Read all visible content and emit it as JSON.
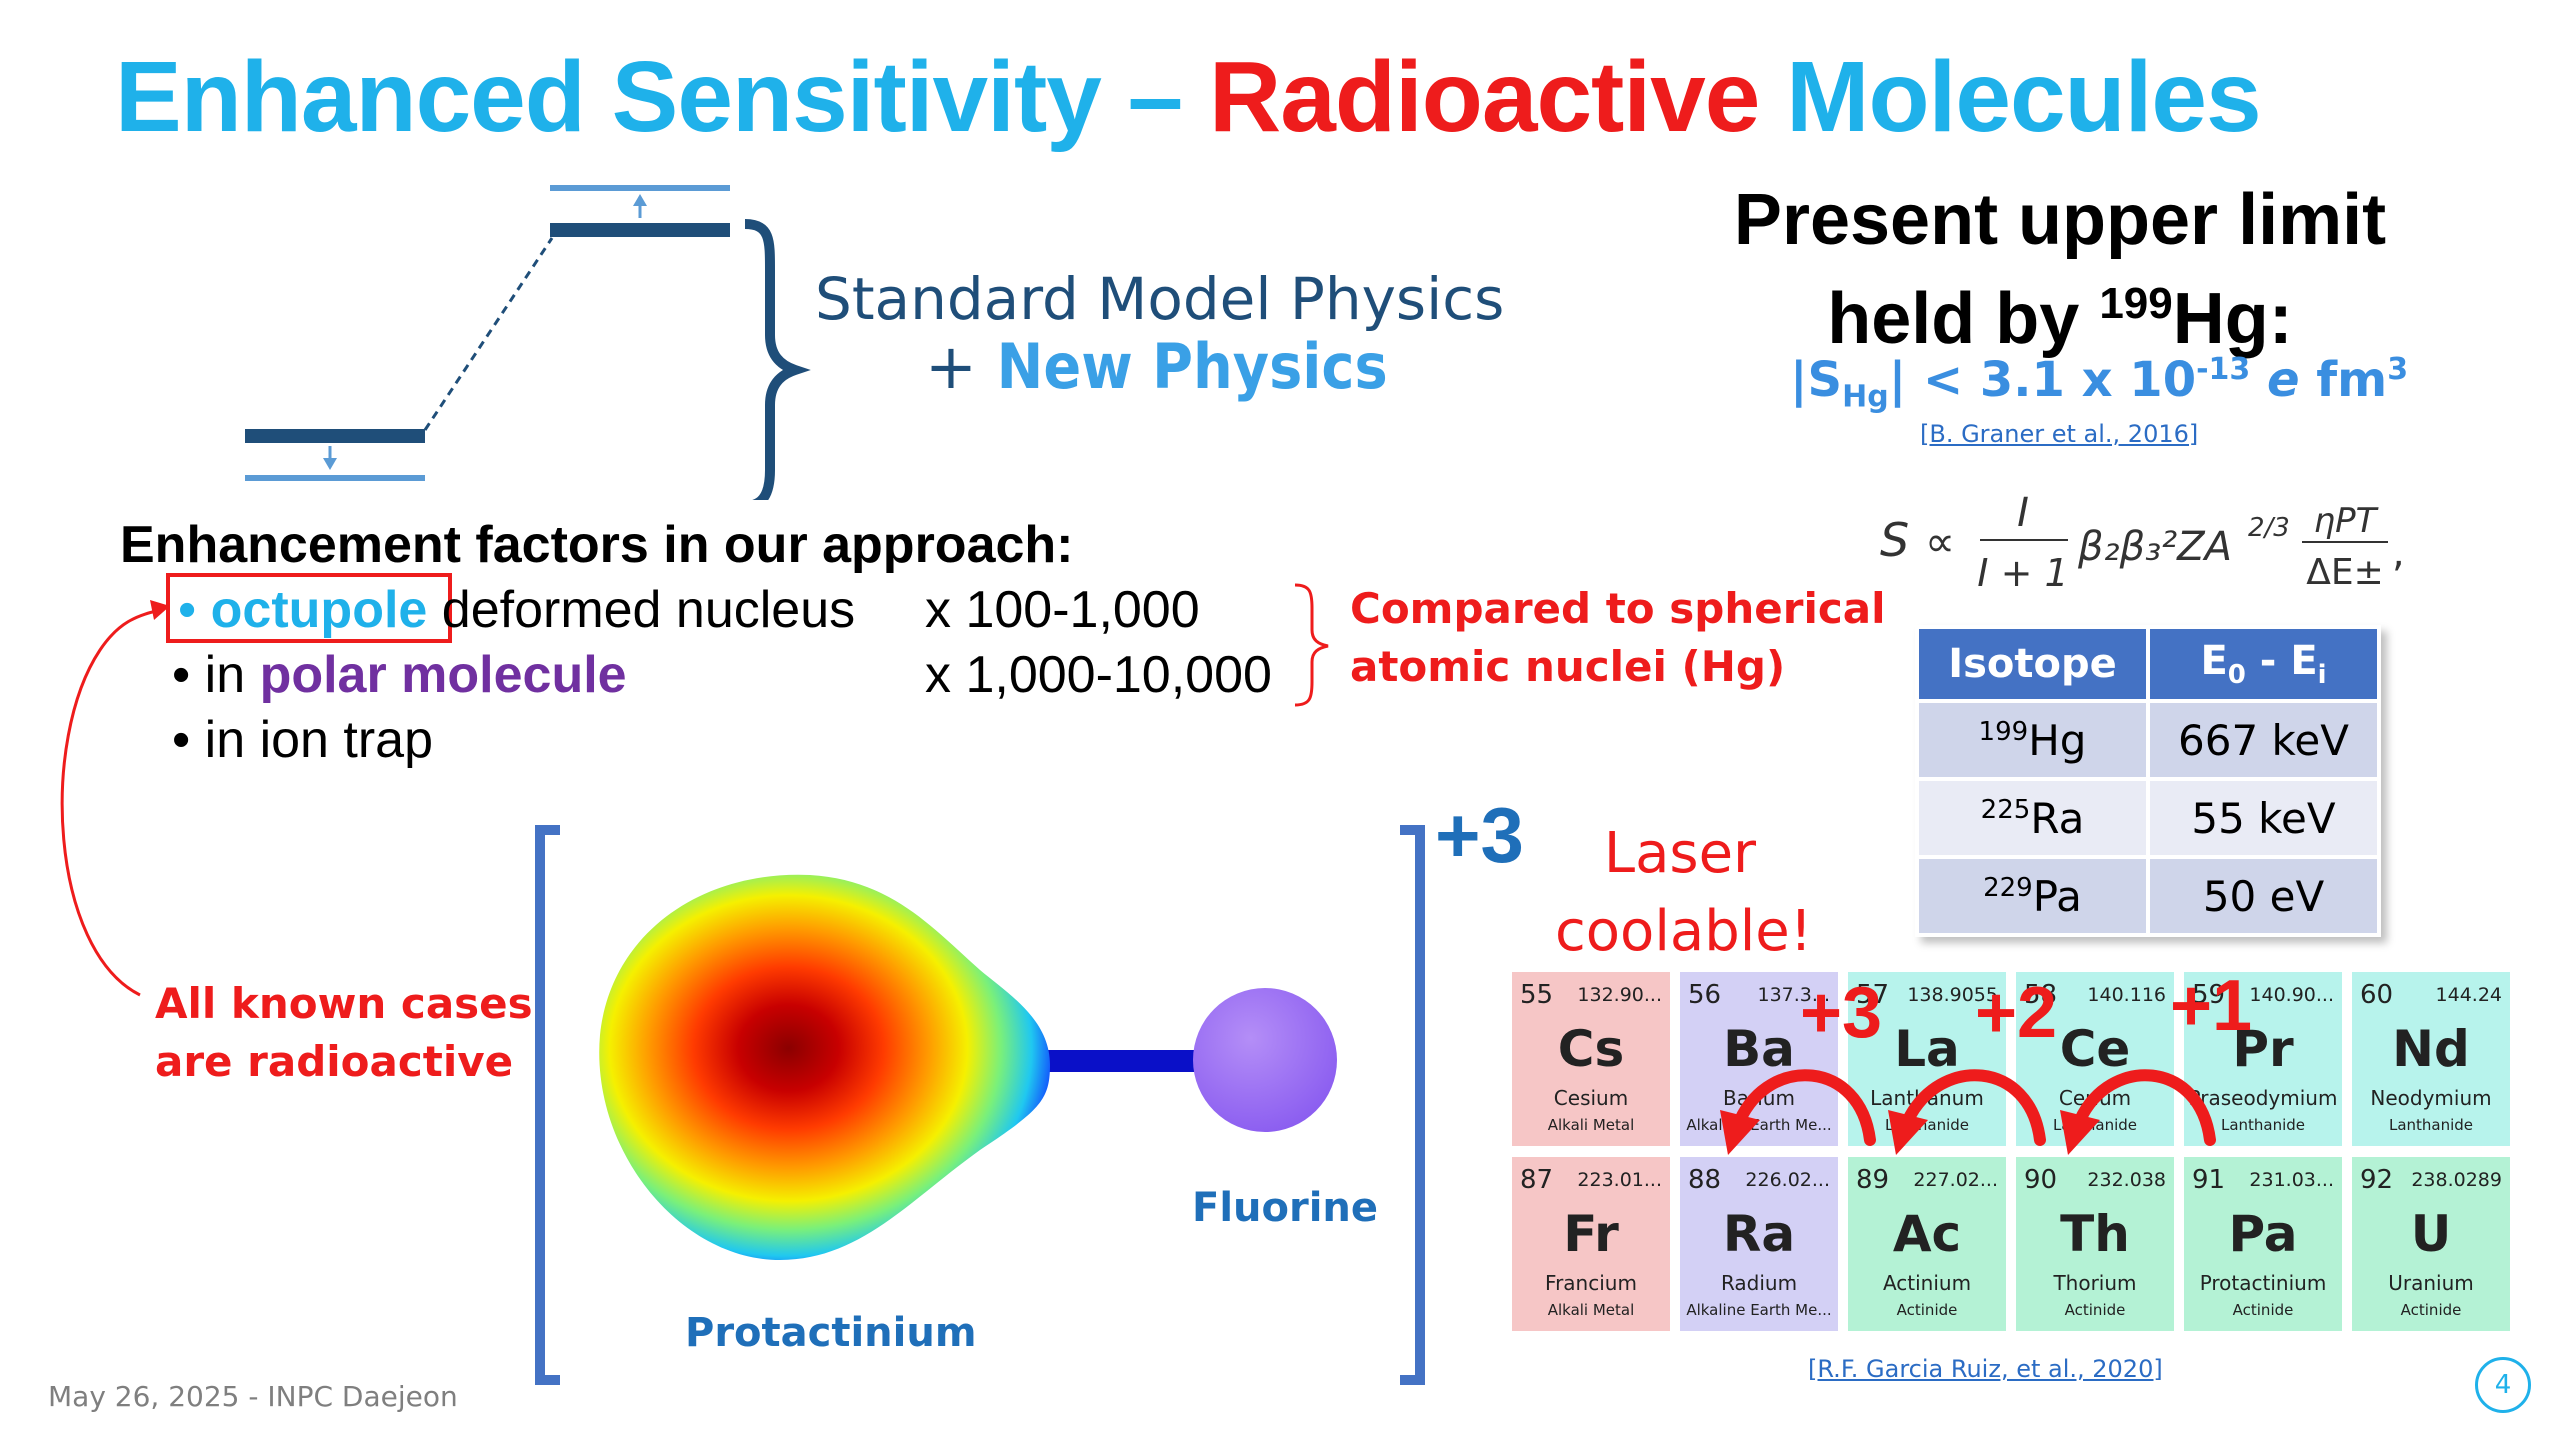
{
  "title": {
    "part1": "Enhanced Sensitivity – ",
    "part2": "Radioactive",
    "part3": " Molecules"
  },
  "energy_diagram": {
    "label_line1": "Standard Model Physics",
    "label_plus": "+ ",
    "label_new": "New Physics"
  },
  "upper_limit": {
    "line1": "Present upper limit",
    "line2_pre": "held by ",
    "line2_sup": "199",
    "line2_post": "Hg:",
    "eq_pre": "|S",
    "eq_sub": "Hg",
    "eq_mid": "| < 3.1 x 10",
    "eq_exp": "-13",
    "eq_e": "e",
    "eq_unit": " fm",
    "eq_unit_sup": "3",
    "reference": "[B. Graner et al., 2016]"
  },
  "formula": {
    "S": "S",
    "prop": "∝",
    "num": "I",
    "den": "I + 1",
    "mid": "β₂β₃²ZA",
    "exp": "2/3",
    "frac2_num": "ηPT",
    "frac2_den": "ΔE±",
    "comma": ","
  },
  "enhancement": {
    "heading": "Enhancement factors in our approach:",
    "item1_bullet": "•",
    "item1_key": "octupole",
    "item1_rest": " deformed nucleus",
    "item1_factor": "x 100-1,000",
    "item2_pre": "• in ",
    "item2_key": "polar molecule",
    "item2_factor": "x 1,000-10,000",
    "item3": "• in ion trap",
    "compared_line1": "Compared to spherical",
    "compared_line2": "atomic nuclei (Hg)"
  },
  "known_cases": {
    "line1": "All known cases",
    "line2": "are radioactive"
  },
  "molecule": {
    "charge": "+3",
    "atom1": "Protactinium",
    "atom2": "Fluorine"
  },
  "laser": {
    "line1": "Laser",
    "line2": "coolable!"
  },
  "isotope_table": {
    "headers": [
      "Isotope",
      "E₀ - Eᵢ"
    ],
    "header2_main": "E",
    "header2_sub1": "0",
    "header2_mid": " - E",
    "header2_sub2": "i",
    "rows": [
      {
        "mass": "199",
        "element": "Hg",
        "energy": "667 keV"
      },
      {
        "mass": "225",
        "element": "Ra",
        "energy": "55 keV"
      },
      {
        "mass": "229",
        "element": "Pa",
        "energy": "50 eV"
      }
    ]
  },
  "periodic_table": {
    "row1": [
      {
        "num": "55",
        "mass": "132.90...",
        "sym": "Cs",
        "name": "Cesium",
        "cat": "Alkali Metal"
      },
      {
        "num": "56",
        "mass": "137.3...",
        "sym": "Ba",
        "name": "Barium",
        "cat": "Alkaline Earth Me..."
      },
      {
        "num": "57",
        "mass": "138.9055",
        "sym": "La",
        "name": "Lanthanum",
        "cat": "Lanthanide"
      },
      {
        "num": "58",
        "mass": "140.116",
        "sym": "Ce",
        "name": "Cerium",
        "cat": "Lanthanide"
      },
      {
        "num": "59",
        "mass": "140.90...",
        "sym": "Pr",
        "name": "Praseodymium",
        "cat": "Lanthanide"
      },
      {
        "num": "60",
        "mass": "144.24",
        "sym": "Nd",
        "name": "Neodymium",
        "cat": "Lanthanide"
      }
    ],
    "row2": [
      {
        "num": "87",
        "mass": "223.01...",
        "sym": "Fr",
        "name": "Francium",
        "cat": "Alkali Metal"
      },
      {
        "num": "88",
        "mass": "226.02...",
        "sym": "Ra",
        "name": "Radium",
        "cat": "Alkaline Earth Me..."
      },
      {
        "num": "89",
        "mass": "227.02...",
        "sym": "Ac",
        "name": "Actinium",
        "cat": "Actinide"
      },
      {
        "num": "90",
        "mass": "232.038",
        "sym": "Th",
        "name": "Thorium",
        "cat": "Actinide"
      },
      {
        "num": "91",
        "mass": "231.03...",
        "sym": "Pa",
        "name": "Protactinium",
        "cat": "Actinide"
      },
      {
        "num": "92",
        "mass": "238.0289",
        "sym": "U",
        "name": "Uranium",
        "cat": "Actinide"
      }
    ],
    "charges": [
      "+3",
      "+2",
      "+1"
    ],
    "reference": "[R.F. Garcia Ruiz, et al., 2020]"
  },
  "footer": {
    "text": "May 26, 2025 - INPC Daejeon",
    "page": "4"
  },
  "colors": {
    "title_cyan": "#1fb1ea",
    "accent_red": "#ee1c1c",
    "table_header": "#4472c4",
    "label_blue": "#1f6fb9",
    "purple": "#7030a0"
  }
}
